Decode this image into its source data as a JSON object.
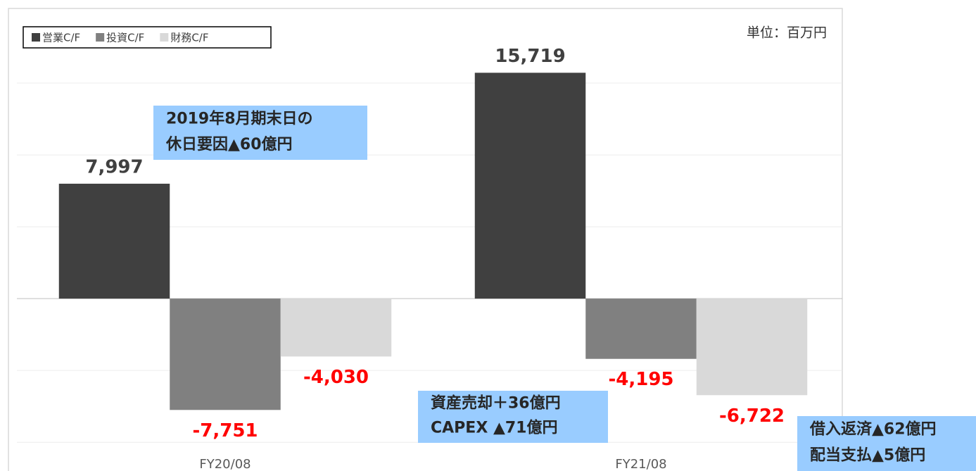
{
  "chart_data": {
    "type": "bar",
    "unit": "単位：百万円",
    "categories": [
      "FY20/08",
      "FY21/08"
    ],
    "series": [
      {
        "name": "営業C/F",
        "color": "#404040",
        "values": [
          7997,
          15719
        ],
        "value_labels": [
          "7,997",
          "15,719"
        ]
      },
      {
        "name": "投資C/F",
        "color": "#808080",
        "values": [
          -7751,
          -4195
        ],
        "value_labels": [
          "-7,751",
          "-4,195"
        ]
      },
      {
        "name": "財務C/F",
        "color": "#d9d9d9",
        "values": [
          -4030,
          -6722
        ],
        "value_labels": [
          "-4,030",
          "-6,722"
        ]
      }
    ],
    "ylim": [
      -12000,
      20000
    ],
    "yticks": [
      -10000,
      -5000,
      0,
      5000,
      10000,
      15000
    ],
    "grid": true,
    "legend": "top-left",
    "annotations": [
      {
        "lines": [
          "2019年8月期末日の",
          "休日要因▲60億円"
        ]
      },
      {
        "lines": [
          "資産売却＋36億円",
          "CAPEX ▲71億円"
        ]
      },
      {
        "lines": [
          "借入返済▲62億円",
          "配当支払▲5億円"
        ]
      }
    ]
  }
}
